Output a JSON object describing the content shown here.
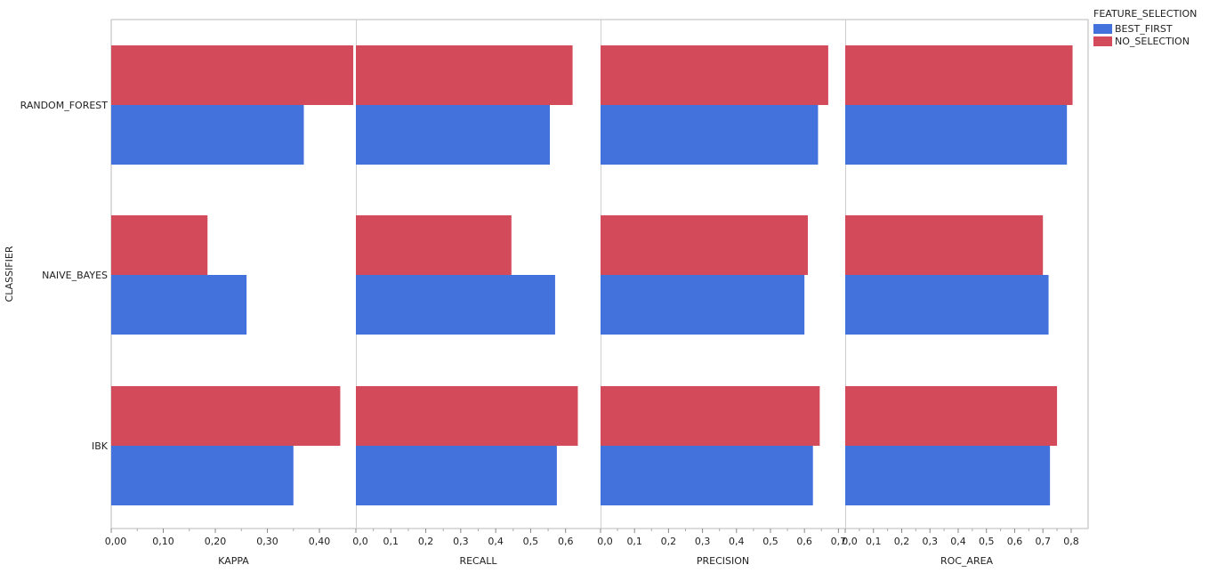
{
  "chart_data": {
    "type": "bar",
    "orientation": "horizontal",
    "y_axis_label": "CLASSIFIER",
    "categories": [
      "RANDOM_FOREST",
      "NAIVE_BAYES",
      "IBK"
    ],
    "legend": {
      "title": "FEATURE_SELECTION",
      "placement": "top-right",
      "entries": [
        {
          "name": "BEST_FIRST",
          "color": "#4472DC"
        },
        {
          "name": "NO_SELECTION",
          "color": "#D34A5A"
        }
      ]
    },
    "panels": [
      {
        "xlabel": "KAPPA",
        "xlim": [
          0,
          0.47
        ],
        "ticks": [
          "0,00",
          "0,10",
          "0,20",
          "0,30",
          "0,40"
        ],
        "tick_values": [
          0,
          0.1,
          0.2,
          0.3,
          0.4
        ],
        "series": [
          {
            "name": "BEST_FIRST",
            "values": [
              0.37,
              0.26,
              0.35
            ]
          },
          {
            "name": "NO_SELECTION",
            "values": [
              0.465,
              0.185,
              0.44
            ]
          }
        ]
      },
      {
        "xlabel": "RECALL",
        "xlim": [
          0,
          0.7
        ],
        "ticks": [
          "0,0",
          "0,1",
          "0,2",
          "0,3",
          "0,4",
          "0,5",
          "0,6"
        ],
        "tick_values": [
          0,
          0.1,
          0.2,
          0.3,
          0.4,
          0.5,
          0.6
        ],
        "series": [
          {
            "name": "BEST_FIRST",
            "values": [
              0.555,
              0.57,
              0.575
            ]
          },
          {
            "name": "NO_SELECTION",
            "values": [
              0.62,
              0.445,
              0.635
            ]
          }
        ]
      },
      {
        "xlabel": "PRECISION",
        "xlim": [
          0,
          0.72
        ],
        "ticks": [
          "0,0",
          "0,1",
          "0,2",
          "0,3",
          "0,4",
          "0,5",
          "0,6",
          "0,7"
        ],
        "tick_values": [
          0,
          0.1,
          0.2,
          0.3,
          0.4,
          0.5,
          0.6,
          0.7
        ],
        "series": [
          {
            "name": "BEST_FIRST",
            "values": [
              0.64,
              0.6,
              0.625
            ]
          },
          {
            "name": "NO_SELECTION",
            "values": [
              0.67,
              0.61,
              0.645
            ]
          }
        ]
      },
      {
        "xlabel": "ROC_AREA",
        "xlim": [
          0,
          0.86
        ],
        "ticks": [
          "0,0",
          "0,1",
          "0,2",
          "0,3",
          "0,4",
          "0,5",
          "0,6",
          "0,7",
          "0,8"
        ],
        "tick_values": [
          0,
          0.1,
          0.2,
          0.3,
          0.4,
          0.5,
          0.6,
          0.7,
          0.8
        ],
        "series": [
          {
            "name": "BEST_FIRST",
            "values": [
              0.785,
              0.72,
              0.725
            ]
          },
          {
            "name": "NO_SELECTION",
            "values": [
              0.805,
              0.7,
              0.75
            ]
          }
        ]
      }
    ]
  }
}
